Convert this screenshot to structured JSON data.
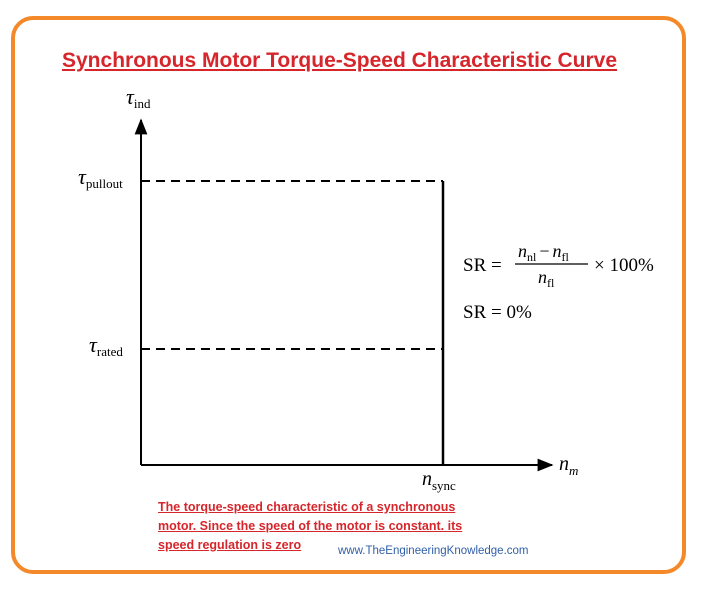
{
  "title": "Synchronous Motor Torque-Speed Characteristic Curve",
  "axes": {
    "y_symbol": "τ",
    "y_subscript": "ind",
    "x_symbol": "n",
    "x_subscript": "m"
  },
  "levels": {
    "pullout": {
      "symbol": "τ",
      "subscript": "pullout"
    },
    "rated": {
      "symbol": "τ",
      "subscript": "rated"
    },
    "sync": {
      "symbol": "n",
      "subscript": "sync"
    }
  },
  "formula": {
    "sr_label": "SR =",
    "numerator_a": "n",
    "numerator_a_sub": "nl",
    "minus": "−",
    "numerator_b": "n",
    "numerator_b_sub": "fl",
    "denominator": "n",
    "denominator_sub": "fl",
    "multiplier": "× 100%",
    "result": "SR = 0%"
  },
  "caption": {
    "line1": "The torque-speed characteristic of a synchronous",
    "line2": "motor. Since the speed of the motor is constant. its",
    "line3": "speed regulation is zero"
  },
  "website": "www.TheEngineeringKnowledge.com",
  "colors": {
    "frame": "#f4892a",
    "title": "#d6262c",
    "caption": "#d6262c",
    "website": "#2f5ea8"
  }
}
